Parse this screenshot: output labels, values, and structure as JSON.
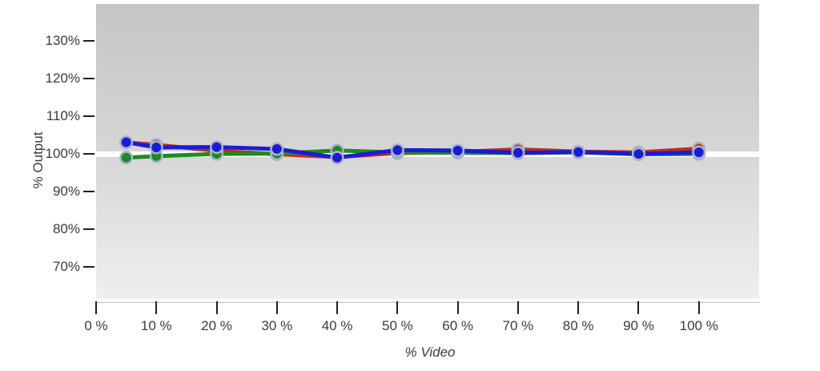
{
  "chart_data": {
    "type": "line",
    "title": "",
    "xlabel": "% Video",
    "ylabel": "% Output",
    "x": [
      5,
      10,
      20,
      30,
      40,
      50,
      60,
      70,
      80,
      90,
      100
    ],
    "series": [
      {
        "name": "red",
        "color": "#c32b1f",
        "values": [
          103.0,
          102.4,
          100.8,
          99.9,
          99.2,
          100.2,
          100.5,
          101.2,
          100.6,
          100.4,
          101.4
        ]
      },
      {
        "name": "green",
        "color": "#1e8b1e",
        "values": [
          99.0,
          99.4,
          100.0,
          100.1,
          100.9,
          100.4,
          100.3,
          100.2,
          100.4,
          99.9,
          100.0
        ]
      },
      {
        "name": "blue",
        "color": "#1b1bd6",
        "values": [
          103.1,
          101.7,
          101.8,
          101.3,
          99.0,
          101.0,
          100.9,
          100.3,
          100.5,
          100.0,
          100.4
        ]
      }
    ],
    "x_ticks": [
      0,
      10,
      20,
      30,
      40,
      50,
      60,
      70,
      80,
      90,
      100
    ],
    "x_tick_labels": [
      "0 %",
      "10 %",
      "20 %",
      "30 %",
      "40 %",
      "50 %",
      "60 %",
      "70 %",
      "80 %",
      "90 %",
      "100 %"
    ],
    "y_ticks": [
      130,
      120,
      110,
      100,
      90,
      80,
      70
    ],
    "y_tick_labels": [
      "130%",
      "120%",
      "110%",
      "100%",
      "90%",
      "80%",
      "70%"
    ],
    "xlim": [
      0,
      110
    ],
    "ylim": [
      61.6,
      139.7
    ],
    "grid": false,
    "legend": false,
    "reference_band": {
      "value": 100,
      "color": "#ffffff"
    },
    "line_width": 5,
    "marker_size": 17,
    "marker_ring_color": "#a9b4c9",
    "plot_bg_top": "#c5c5c5",
    "plot_bg_bottom": "#efefef",
    "tick_color": "#1f1f1f",
    "axis_line_color": "#c2c2c2",
    "label_color": "#3b3b3b"
  }
}
